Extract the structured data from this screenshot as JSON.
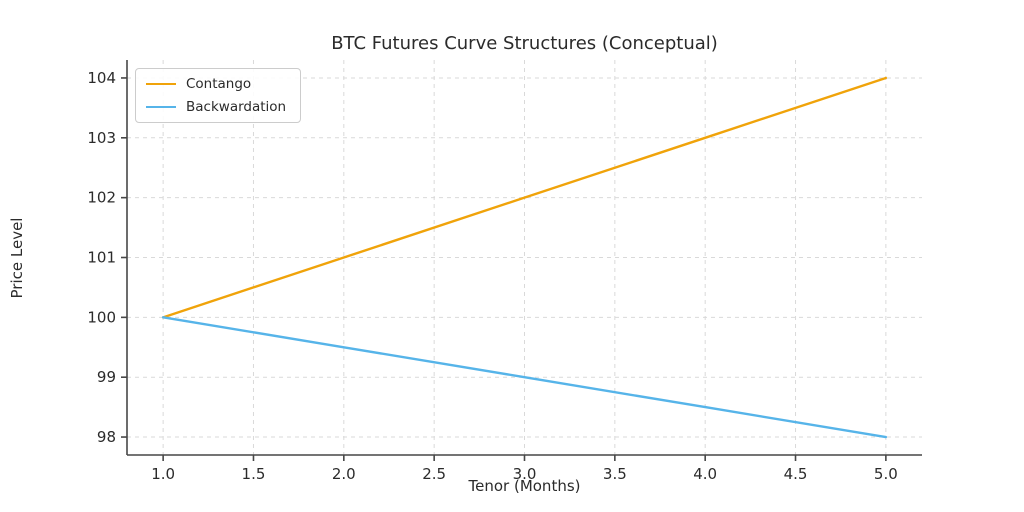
{
  "chart_data": {
    "type": "line",
    "title": "BTC Futures Curve Structures (Conceptual)",
    "xlabel": "Tenor (Months)",
    "ylabel": "Price Level",
    "x": [
      1,
      2,
      3,
      4,
      5
    ],
    "series": [
      {
        "name": "Contango",
        "color": "#f0a30a",
        "values": [
          100,
          101,
          102,
          103,
          104
        ]
      },
      {
        "name": "Backwardation",
        "color": "#56b4e9",
        "values": [
          100,
          99.5,
          99,
          98.5,
          98
        ]
      }
    ],
    "xlim": [
      0.8,
      5.2
    ],
    "ylim": [
      97.7,
      104.3
    ],
    "xticks": [
      1.0,
      1.5,
      2.0,
      2.5,
      3.0,
      3.5,
      4.0,
      4.5,
      5.0
    ],
    "xtick_labels": [
      "1.0",
      "1.5",
      "2.0",
      "2.5",
      "3.0",
      "3.5",
      "4.0",
      "4.5",
      "5.0"
    ],
    "yticks": [
      98,
      99,
      100,
      101,
      102,
      103,
      104
    ],
    "ytick_labels": [
      "98",
      "99",
      "100",
      "101",
      "102",
      "103",
      "104"
    ],
    "grid": true,
    "grid_style": "dashed",
    "legend_position": "upper left",
    "spines": [
      "left",
      "bottom"
    ]
  }
}
